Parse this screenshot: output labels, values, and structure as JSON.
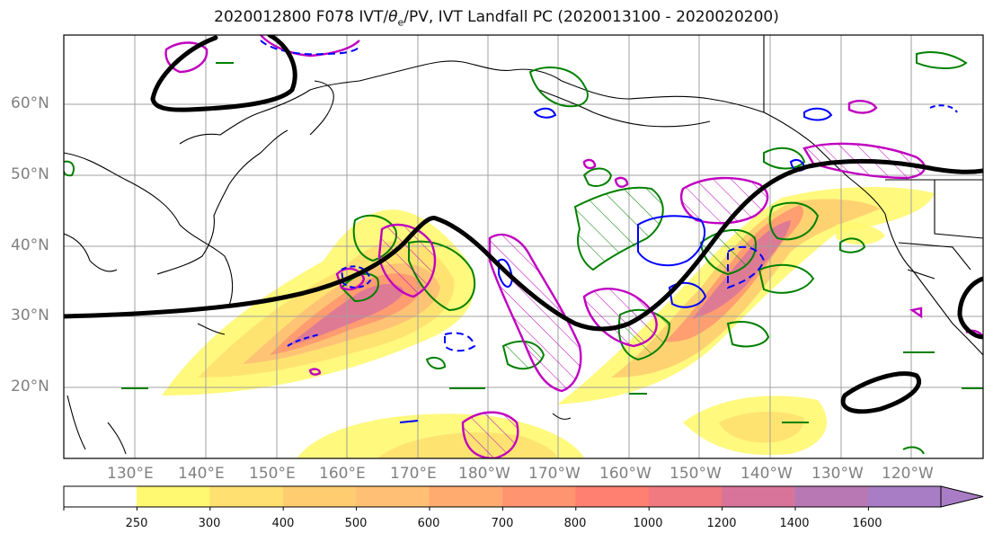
{
  "title": {
    "prefix": "2020012800 F078 IVT/",
    "theta": "θ",
    "theta_sub": "e",
    "suffix": "/PV, IVT Landfall PC (2020013100 - 2020020200)"
  },
  "map": {
    "lat_labels": [
      "60°N",
      "50°N",
      "40°N",
      "30°N",
      "20°N"
    ],
    "lon_labels": [
      "130°E",
      "140°E",
      "150°E",
      "160°E",
      "170°E",
      "180°W",
      "170°W",
      "160°W",
      "150°W",
      "140°W",
      "130°W",
      "120°W"
    ]
  },
  "colorbar": {
    "ticks": [
      "250",
      "300",
      "400",
      "500",
      "600",
      "700",
      "800",
      "1000",
      "1200",
      "1400",
      "1600"
    ],
    "colors": [
      "#fff870",
      "#ffe070",
      "#ffcd70",
      "#ffbf75",
      "#ffab70",
      "#ff9570",
      "#ff8070",
      "#f07a80",
      "#d8749a",
      "#b878b4",
      "#a97dc5"
    ]
  },
  "legend_colors": {
    "ivt_fill": "#ffd070",
    "theta_e_contour": "#008000",
    "pv_contour": "#c000c0",
    "pv_dashed": "#0000ff",
    "landfall_pc_line": "#000000"
  }
}
